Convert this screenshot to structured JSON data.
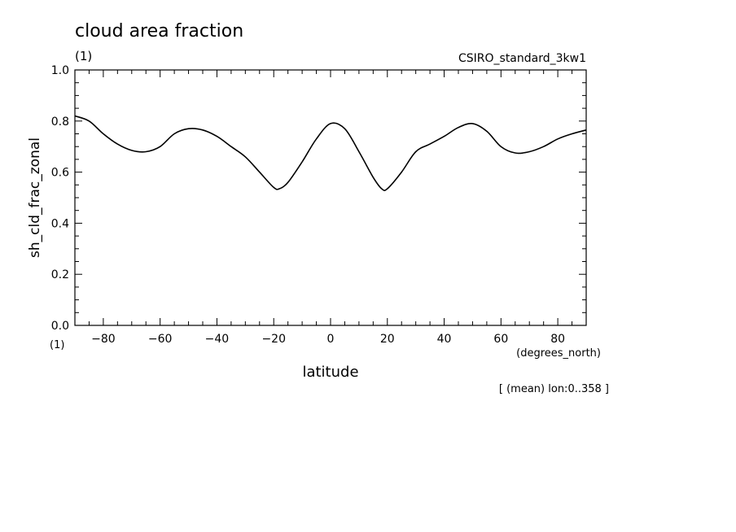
{
  "chart_data": {
    "type": "line",
    "title": "cloud area fraction",
    "units": "(1)",
    "dataset": "CSIRO_standard_3kw1",
    "ylabel": "sh_cld_frac_zonal",
    "yunits": "(1)",
    "xlabel": "latitude",
    "xunits": "(degrees_north)",
    "footnote": "[ (mean) lon:0..358 ]",
    "xlim": [
      -90,
      90
    ],
    "ylim": [
      0.0,
      1.0
    ],
    "xticks": [
      -80,
      -60,
      -40,
      -20,
      0,
      20,
      40,
      60,
      80
    ],
    "yticks": [
      0.0,
      0.2,
      0.4,
      0.6,
      0.8,
      1.0
    ],
    "ytick_labels": [
      "0.0",
      "0.2",
      "0.4",
      "0.6",
      "0.8",
      "1.0"
    ],
    "grid": false,
    "series": [
      {
        "x": [
          -90,
          -85,
          -80,
          -75,
          -70,
          -65,
          -60,
          -55,
          -50,
          -45,
          -40,
          -35,
          -30,
          -25,
          -20,
          -18,
          -15,
          -10,
          -5,
          0,
          5,
          10,
          15,
          18,
          20,
          25,
          30,
          35,
          40,
          45,
          50,
          55,
          60,
          65,
          70,
          75,
          80,
          85,
          90
        ],
        "y": [
          0.82,
          0.8,
          0.75,
          0.71,
          0.685,
          0.68,
          0.7,
          0.75,
          0.77,
          0.765,
          0.74,
          0.7,
          0.66,
          0.6,
          0.54,
          0.535,
          0.56,
          0.64,
          0.73,
          0.79,
          0.77,
          0.68,
          0.58,
          0.535,
          0.535,
          0.6,
          0.68,
          0.71,
          0.74,
          0.775,
          0.79,
          0.76,
          0.7,
          0.675,
          0.68,
          0.7,
          0.73,
          0.75,
          0.765
        ]
      }
    ]
  }
}
